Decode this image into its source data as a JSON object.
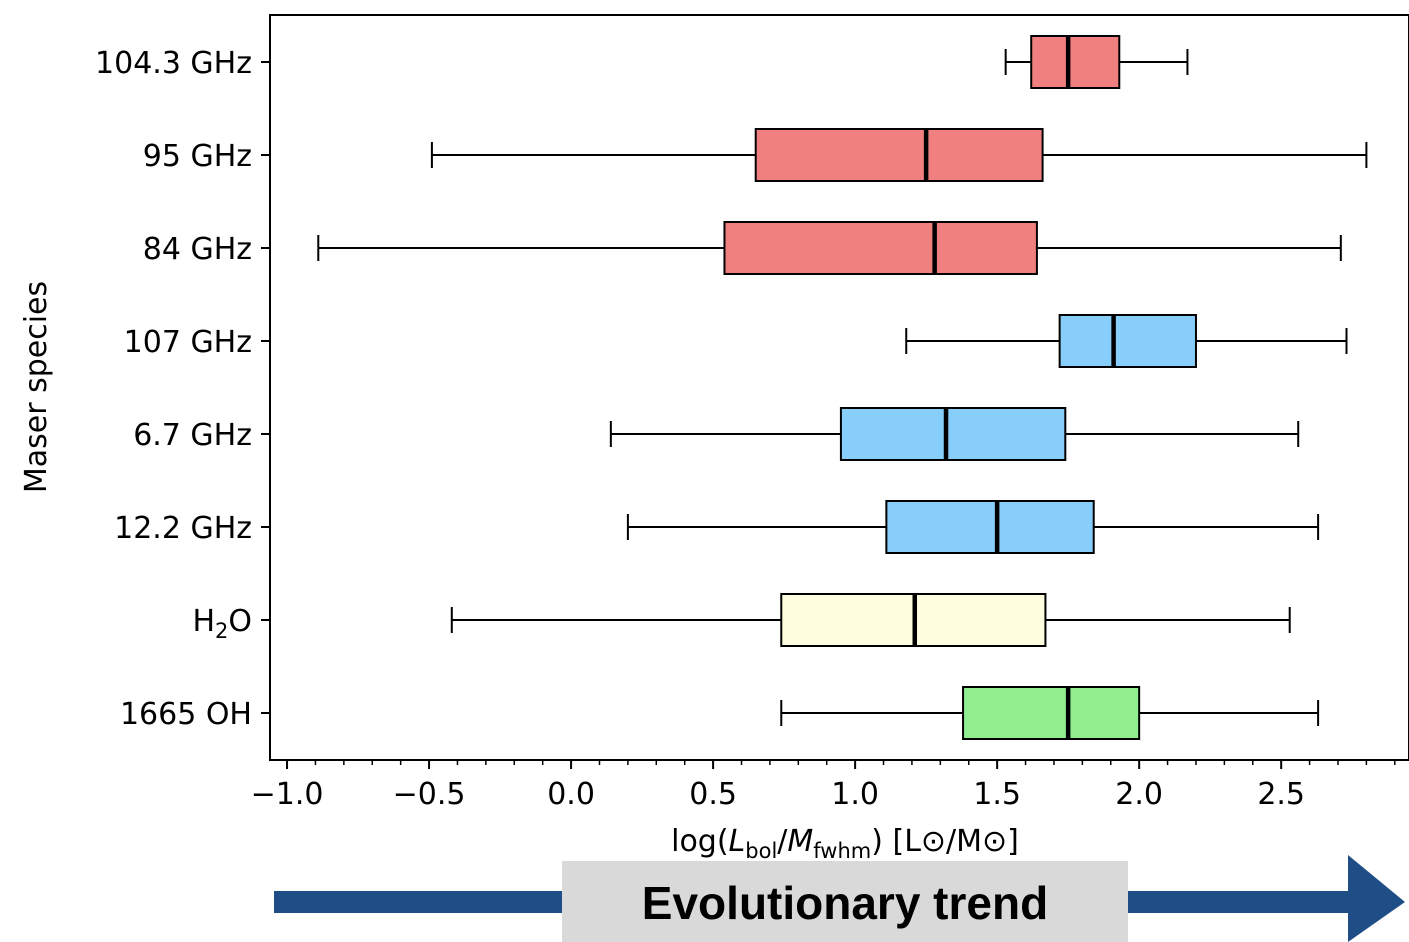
{
  "chart_data": {
    "type": "boxplot",
    "orientation": "horizontal",
    "title": "",
    "xlabel": {
      "prefix": "log(",
      "L": "L",
      "L_sub": "bol",
      "slash": "/",
      "M": "M",
      "M_sub": "fwhm",
      "suffix": ") [L⊙/M⊙]"
    },
    "ylabel": "Maser species",
    "xlim": [
      -1.06,
      2.95
    ],
    "xticks": [
      -1.0,
      -0.5,
      0.0,
      0.5,
      1.0,
      1.5,
      2.0,
      2.5
    ],
    "xtick_labels": [
      "−1.0",
      "−0.5",
      "0.0",
      "0.5",
      "1.0",
      "1.5",
      "2.0",
      "2.5"
    ],
    "grid": false,
    "categories": [
      "104.3 GHz",
      "95 GHz",
      "84 GHz",
      "107 GHz",
      "6.7 GHz",
      "12.2 GHz",
      "H2O",
      "1665 OH"
    ],
    "boxes": [
      {
        "label": "104.3 GHz",
        "whisker_low": 1.53,
        "q1": 1.62,
        "median": 1.75,
        "q3": 1.93,
        "whisker_high": 2.17,
        "color": "#f08080"
      },
      {
        "label": "95 GHz",
        "whisker_low": -0.49,
        "q1": 0.65,
        "median": 1.25,
        "q3": 1.66,
        "whisker_high": 2.8,
        "color": "#f08080"
      },
      {
        "label": "84 GHz",
        "whisker_low": -0.89,
        "q1": 0.54,
        "median": 1.28,
        "q3": 1.64,
        "whisker_high": 2.71,
        "color": "#f08080"
      },
      {
        "label": "107 GHz",
        "whisker_low": 1.18,
        "q1": 1.72,
        "median": 1.91,
        "q3": 2.2,
        "whisker_high": 2.73,
        "color": "#87cefa"
      },
      {
        "label": "6.7 GHz",
        "whisker_low": 0.14,
        "q1": 0.95,
        "median": 1.32,
        "q3": 1.74,
        "whisker_high": 2.56,
        "color": "#87cefa"
      },
      {
        "label": "12.2 GHz",
        "whisker_low": 0.2,
        "q1": 1.11,
        "median": 1.5,
        "q3": 1.84,
        "whisker_high": 2.63,
        "color": "#87cefa"
      },
      {
        "label": "H2O",
        "whisker_low": -0.42,
        "q1": 0.74,
        "median": 1.21,
        "q3": 1.67,
        "whisker_high": 2.53,
        "color": "#ffffe0"
      },
      {
        "label": "1665 OH",
        "whisker_low": 0.74,
        "q1": 1.38,
        "median": 1.75,
        "q3": 2.0,
        "whisker_high": 2.63,
        "color": "#90ee90"
      }
    ],
    "annotation": {
      "text": "Evolutionary trend",
      "arrow_color": "#1f4e86",
      "box_color": "#d9d9d9"
    }
  }
}
